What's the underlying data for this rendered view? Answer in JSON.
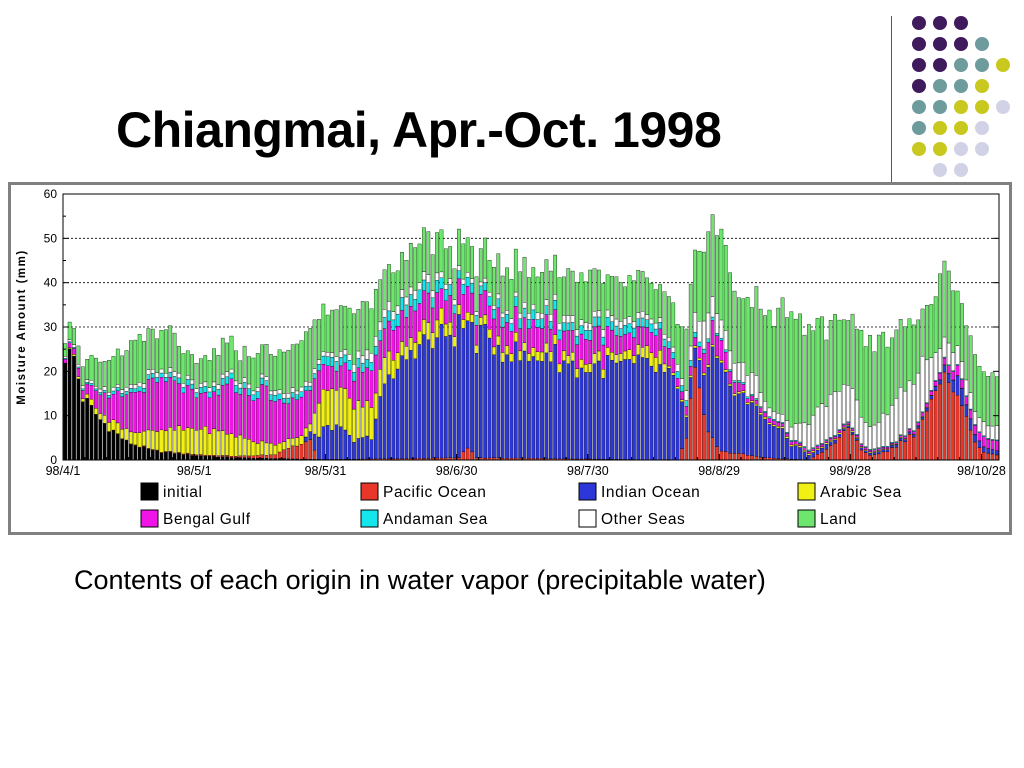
{
  "slide": {
    "title": "Chiangmai, Apr.-Oct. 1998",
    "caption": "Contents of each origin in water vapor (precipitable water)"
  },
  "decoration": {
    "name": "dot-grid-decoration",
    "colors": {
      "purple": "#3f1a5c",
      "teal": "#6e9c9c",
      "yellow": "#c8c81e",
      "lavender": "#d2d2e6"
    },
    "rows": [
      [
        "purple",
        "purple",
        "purple"
      ],
      [
        "purple",
        "purple",
        "purple",
        "teal"
      ],
      [
        "purple",
        "purple",
        "teal",
        "teal",
        "yellow"
      ],
      [
        "purple",
        "teal",
        "teal",
        "yellow"
      ],
      [
        "teal",
        "teal",
        "yellow",
        "yellow",
        "lavender"
      ],
      [
        "teal",
        "yellow",
        "yellow",
        "lavender"
      ],
      [
        "yellow",
        "yellow",
        "lavender",
        "lavender"
      ],
      [
        "lavender",
        "lavender"
      ]
    ]
  },
  "chart_data": {
    "type": "bar",
    "stacked": true,
    "ylabel": "Moisture Amount (mm)",
    "ylim": [
      0,
      60
    ],
    "yticks": [
      0,
      10,
      20,
      30,
      40,
      50,
      60
    ],
    "gridlines_at": [
      30,
      40,
      50
    ],
    "x_tick_labels": [
      "98/4/1",
      "98/5/1",
      "98/5/31",
      "98/6/30",
      "98/7/30",
      "98/8/29",
      "98/9/28",
      "98/10/28"
    ],
    "x_tick_day_index": [
      0,
      30,
      60,
      90,
      120,
      150,
      180,
      210
    ],
    "x_note": "one bar per day, 98/4/1 to 98/10/31",
    "legend_position": "bottom",
    "series": [
      {
        "name": "initial",
        "color": "#000000"
      },
      {
        "name": "Pacific Ocean",
        "color": "#e8362a"
      },
      {
        "name": "Indian Ocean",
        "color": "#2c36d9"
      },
      {
        "name": "Arabic Sea",
        "color": "#f0f014"
      },
      {
        "name": "Bengal Gulf",
        "color": "#f014e6"
      },
      {
        "name": "Andaman Sea",
        "color": "#14e6eb"
      },
      {
        "name": "Other Seas",
        "color": "#ffffff"
      },
      {
        "name": "Land",
        "color": "#6ee66e"
      }
    ],
    "legend_order": [
      "initial",
      "Pacific Ocean",
      "Indian Ocean",
      "Arabic Sea",
      "Bengal Gulf",
      "Andaman Sea",
      "Other Seas",
      "Land"
    ],
    "anchors": {
      "initial": [
        [
          0,
          24
        ],
        [
          2,
          23
        ],
        [
          4,
          14
        ],
        [
          8,
          9
        ],
        [
          14,
          4
        ],
        [
          20,
          2
        ],
        [
          30,
          1
        ],
        [
          40,
          0.5
        ],
        [
          50,
          0.3
        ],
        [
          60,
          0.1
        ],
        [
          80,
          0
        ],
        [
          213,
          0
        ]
      ],
      "Pacific Ocean": [
        [
          0,
          0
        ],
        [
          38,
          0.3
        ],
        [
          48,
          0.8
        ],
        [
          52,
          3
        ],
        [
          56,
          4
        ],
        [
          58,
          0
        ],
        [
          90,
          0.5
        ],
        [
          92,
          3
        ],
        [
          94,
          0.5
        ],
        [
          140,
          0
        ],
        [
          142,
          5
        ],
        [
          143,
          16
        ],
        [
          144,
          20
        ],
        [
          145,
          16
        ],
        [
          147,
          6
        ],
        [
          150,
          2
        ],
        [
          160,
          0.5
        ],
        [
          170,
          0
        ],
        [
          175,
          3
        ],
        [
          177,
          5
        ],
        [
          179,
          8
        ],
        [
          182,
          2
        ],
        [
          184,
          1
        ],
        [
          188,
          2
        ],
        [
          191,
          4
        ],
        [
          194,
          6
        ],
        [
          197,
          11
        ],
        [
          200,
          16
        ],
        [
          202,
          19
        ],
        [
          204,
          16
        ],
        [
          206,
          9
        ],
        [
          208,
          4
        ],
        [
          210,
          2
        ],
        [
          213,
          1
        ]
      ],
      "Indian Ocean": [
        [
          0,
          0
        ],
        [
          54,
          0
        ],
        [
          56,
          2
        ],
        [
          60,
          8
        ],
        [
          64,
          6
        ],
        [
          66,
          4
        ],
        [
          70,
          5
        ],
        [
          72,
          14
        ],
        [
          76,
          20
        ],
        [
          80,
          26
        ],
        [
          84,
          26
        ],
        [
          88,
          28
        ],
        [
          90,
          29
        ],
        [
          94,
          27
        ],
        [
          98,
          26
        ],
        [
          102,
          24
        ],
        [
          106,
          22
        ],
        [
          110,
          24
        ],
        [
          114,
          22
        ],
        [
          118,
          20
        ],
        [
          122,
          21
        ],
        [
          126,
          21
        ],
        [
          130,
          21
        ],
        [
          134,
          21
        ],
        [
          138,
          19
        ],
        [
          140,
          15
        ],
        [
          142,
          5
        ],
        [
          144,
          4
        ],
        [
          146,
          8
        ],
        [
          148,
          19
        ],
        [
          152,
          16
        ],
        [
          156,
          12
        ],
        [
          160,
          9
        ],
        [
          164,
          6
        ],
        [
          166,
          3
        ],
        [
          168,
          3
        ],
        [
          170,
          1
        ],
        [
          174,
          1
        ],
        [
          178,
          0.5
        ],
        [
          184,
          0.5
        ],
        [
          190,
          0.5
        ],
        [
          196,
          0.5
        ],
        [
          200,
          1
        ],
        [
          202,
          2
        ],
        [
          204,
          4
        ],
        [
          206,
          3
        ],
        [
          208,
          1.5
        ],
        [
          213,
          1
        ]
      ],
      "Arabic Sea": [
        [
          0,
          0
        ],
        [
          10,
          2
        ],
        [
          16,
          3
        ],
        [
          24,
          5
        ],
        [
          30,
          6
        ],
        [
          38,
          5
        ],
        [
          44,
          3
        ],
        [
          50,
          2
        ],
        [
          56,
          2
        ],
        [
          58,
          7
        ],
        [
          62,
          9
        ],
        [
          66,
          8
        ],
        [
          70,
          7
        ],
        [
          74,
          5
        ],
        [
          78,
          3
        ],
        [
          84,
          4
        ],
        [
          90,
          2
        ],
        [
          96,
          2
        ],
        [
          100,
          2
        ],
        [
          110,
          2
        ],
        [
          120,
          2
        ],
        [
          130,
          2
        ],
        [
          134,
          3
        ],
        [
          136,
          3
        ],
        [
          138,
          0.5
        ],
        [
          146,
          0.5
        ],
        [
          148,
          0.5
        ],
        [
          150,
          0.5
        ],
        [
          213,
          0
        ]
      ],
      "Bengal Gulf": [
        [
          0,
          1
        ],
        [
          4,
          2
        ],
        [
          6,
          3
        ],
        [
          10,
          5
        ],
        [
          14,
          8
        ],
        [
          18,
          10
        ],
        [
          22,
          11
        ],
        [
          26,
          10
        ],
        [
          30,
          7
        ],
        [
          34,
          8
        ],
        [
          38,
          11
        ],
        [
          42,
          10
        ],
        [
          46,
          12
        ],
        [
          50,
          8
        ],
        [
          54,
          9
        ],
        [
          58,
          7
        ],
        [
          62,
          5
        ],
        [
          66,
          6
        ],
        [
          70,
          8
        ],
        [
          74,
          7
        ],
        [
          78,
          6
        ],
        [
          82,
          7
        ],
        [
          86,
          5
        ],
        [
          90,
          6
        ],
        [
          94,
          5
        ],
        [
          98,
          6
        ],
        [
          102,
          5
        ],
        [
          106,
          6
        ],
        [
          110,
          6
        ],
        [
          114,
          5
        ],
        [
          118,
          6
        ],
        [
          122,
          6
        ],
        [
          126,
          4
        ],
        [
          130,
          4
        ],
        [
          134,
          5
        ],
        [
          138,
          4
        ],
        [
          140,
          2
        ],
        [
          144,
          2
        ],
        [
          146,
          4
        ],
        [
          148,
          5
        ],
        [
          150,
          4
        ],
        [
          152,
          3
        ],
        [
          156,
          1
        ],
        [
          160,
          1
        ],
        [
          170,
          0.5
        ],
        [
          180,
          0.5
        ],
        [
          190,
          0.3
        ],
        [
          198,
          1
        ],
        [
          204,
          2
        ],
        [
          210,
          2
        ],
        [
          213,
          2
        ]
      ],
      "Andaman Sea": [
        [
          0,
          0.2
        ],
        [
          20,
          1
        ],
        [
          40,
          1.5
        ],
        [
          56,
          1
        ],
        [
          60,
          2
        ],
        [
          70,
          2
        ],
        [
          80,
          3
        ],
        [
          90,
          2
        ],
        [
          100,
          2
        ],
        [
          110,
          2
        ],
        [
          120,
          2
        ],
        [
          130,
          2
        ],
        [
          140,
          1.5
        ],
        [
          150,
          0.5
        ],
        [
          160,
          0.3
        ],
        [
          180,
          0.2
        ],
        [
          213,
          0.2
        ]
      ],
      "Other Seas": [
        [
          0,
          0.5
        ],
        [
          20,
          1
        ],
        [
          40,
          1
        ],
        [
          56,
          1
        ],
        [
          60,
          1
        ],
        [
          70,
          2
        ],
        [
          80,
          2
        ],
        [
          90,
          1
        ],
        [
          100,
          1
        ],
        [
          110,
          1.5
        ],
        [
          120,
          1.5
        ],
        [
          130,
          1.5
        ],
        [
          138,
          1
        ],
        [
          142,
          2
        ],
        [
          146,
          6
        ],
        [
          150,
          4
        ],
        [
          154,
          4
        ],
        [
          158,
          5
        ],
        [
          160,
          2
        ],
        [
          164,
          2
        ],
        [
          168,
          4
        ],
        [
          172,
          8
        ],
        [
          176,
          9
        ],
        [
          180,
          8
        ],
        [
          184,
          5
        ],
        [
          188,
          8
        ],
        [
          192,
          10
        ],
        [
          196,
          12
        ],
        [
          200,
          5
        ],
        [
          204,
          4
        ],
        [
          206,
          4
        ],
        [
          208,
          3
        ],
        [
          213,
          3
        ]
      ],
      "Land": [
        [
          0,
          3
        ],
        [
          4,
          5
        ],
        [
          8,
          6
        ],
        [
          12,
          8
        ],
        [
          16,
          10
        ],
        [
          20,
          8
        ],
        [
          24,
          9
        ],
        [
          28,
          5
        ],
        [
          32,
          6
        ],
        [
          36,
          8
        ],
        [
          40,
          6
        ],
        [
          44,
          7
        ],
        [
          48,
          8
        ],
        [
          52,
          9
        ],
        [
          56,
          12
        ],
        [
          60,
          9
        ],
        [
          64,
          10
        ],
        [
          68,
          11
        ],
        [
          72,
          10
        ],
        [
          76,
          9
        ],
        [
          80,
          10
        ],
        [
          84,
          9
        ],
        [
          88,
          8
        ],
        [
          92,
          7
        ],
        [
          96,
          8
        ],
        [
          100,
          9
        ],
        [
          104,
          10
        ],
        [
          108,
          8
        ],
        [
          112,
          9
        ],
        [
          116,
          10
        ],
        [
          120,
          11
        ],
        [
          124,
          9
        ],
        [
          128,
          8
        ],
        [
          132,
          9
        ],
        [
          136,
          8
        ],
        [
          140,
          10
        ],
        [
          144,
          16
        ],
        [
          148,
          18
        ],
        [
          152,
          18
        ],
        [
          156,
          16
        ],
        [
          160,
          20
        ],
        [
          164,
          24
        ],
        [
          168,
          22
        ],
        [
          172,
          18
        ],
        [
          176,
          17
        ],
        [
          180,
          15
        ],
        [
          184,
          20
        ],
        [
          188,
          16
        ],
        [
          192,
          15
        ],
        [
          196,
          10
        ],
        [
          200,
          16
        ],
        [
          204,
          14
        ],
        [
          208,
          13
        ],
        [
          213,
          10
        ]
      ]
    }
  }
}
